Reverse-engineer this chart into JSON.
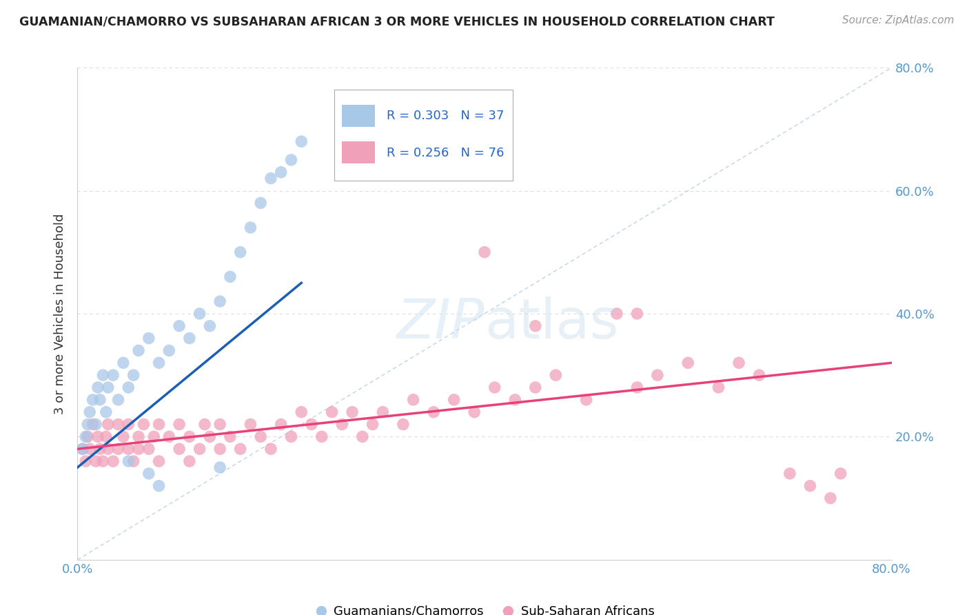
{
  "title": "GUAMANIAN/CHAMORRO VS SUBSAHARAN AFRICAN 3 OR MORE VEHICLES IN HOUSEHOLD CORRELATION CHART",
  "source": "Source: ZipAtlas.com",
  "ylabel_label": "3 or more Vehicles in Household",
  "legend_label1": "Guamanians/Chamorros",
  "legend_label2": "Sub-Saharan Africans",
  "R1": 0.303,
  "N1": 37,
  "R2": 0.256,
  "N2": 76,
  "color_blue": "#a8c8e8",
  "color_pink": "#f0a0b8",
  "line_color_blue": "#1a5fb4",
  "line_color_pink": "#e8407a",
  "diag_color": "#b0c8e0",
  "grid_color": "#dddddd",
  "xlim": [
    0,
    80
  ],
  "ylim": [
    0,
    80
  ],
  "blue_x": [
    0.5,
    0.8,
    1.0,
    1.2,
    1.5,
    1.8,
    2.0,
    2.2,
    2.5,
    2.8,
    3.0,
    3.5,
    4.0,
    4.5,
    5.0,
    5.5,
    6.0,
    7.0,
    8.0,
    9.0,
    10.0,
    11.0,
    12.0,
    13.0,
    14.0,
    15.0,
    16.0,
    17.0,
    18.0,
    19.0,
    20.0,
    21.0,
    22.0,
    14.0,
    8.0,
    5.0,
    7.0
  ],
  "blue_y": [
    18.0,
    20.0,
    22.0,
    24.0,
    26.0,
    22.0,
    28.0,
    26.0,
    30.0,
    24.0,
    28.0,
    30.0,
    26.0,
    32.0,
    28.0,
    30.0,
    34.0,
    36.0,
    32.0,
    34.0,
    38.0,
    36.0,
    40.0,
    38.0,
    42.0,
    46.0,
    50.0,
    54.0,
    58.0,
    62.0,
    63.0,
    65.0,
    68.0,
    15.0,
    12.0,
    16.0,
    14.0
  ],
  "pink_x": [
    0.5,
    0.8,
    1.0,
    1.2,
    1.5,
    1.8,
    2.0,
    2.2,
    2.5,
    2.8,
    3.0,
    3.0,
    3.5,
    4.0,
    4.0,
    4.5,
    5.0,
    5.0,
    5.5,
    6.0,
    6.0,
    6.5,
    7.0,
    7.5,
    8.0,
    8.0,
    9.0,
    10.0,
    10.0,
    11.0,
    11.0,
    12.0,
    12.5,
    13.0,
    14.0,
    14.0,
    15.0,
    16.0,
    17.0,
    18.0,
    19.0,
    20.0,
    21.0,
    22.0,
    23.0,
    24.0,
    25.0,
    26.0,
    27.0,
    28.0,
    29.0,
    30.0,
    32.0,
    33.0,
    35.0,
    37.0,
    39.0,
    41.0,
    43.0,
    45.0,
    47.0,
    50.0,
    53.0,
    55.0,
    57.0,
    60.0,
    63.0,
    65.0,
    67.0,
    70.0,
    72.0,
    74.0,
    40.0,
    55.0,
    75.0,
    45.0
  ],
  "pink_y": [
    18.0,
    16.0,
    20.0,
    18.0,
    22.0,
    16.0,
    20.0,
    18.0,
    16.0,
    20.0,
    18.0,
    22.0,
    16.0,
    18.0,
    22.0,
    20.0,
    18.0,
    22.0,
    16.0,
    20.0,
    18.0,
    22.0,
    18.0,
    20.0,
    16.0,
    22.0,
    20.0,
    18.0,
    22.0,
    20.0,
    16.0,
    18.0,
    22.0,
    20.0,
    18.0,
    22.0,
    20.0,
    18.0,
    22.0,
    20.0,
    18.0,
    22.0,
    20.0,
    24.0,
    22.0,
    20.0,
    24.0,
    22.0,
    24.0,
    20.0,
    22.0,
    24.0,
    22.0,
    26.0,
    24.0,
    26.0,
    24.0,
    28.0,
    26.0,
    28.0,
    30.0,
    26.0,
    40.0,
    28.0,
    30.0,
    32.0,
    28.0,
    32.0,
    30.0,
    14.0,
    12.0,
    10.0,
    50.0,
    40.0,
    14.0,
    38.0
  ]
}
